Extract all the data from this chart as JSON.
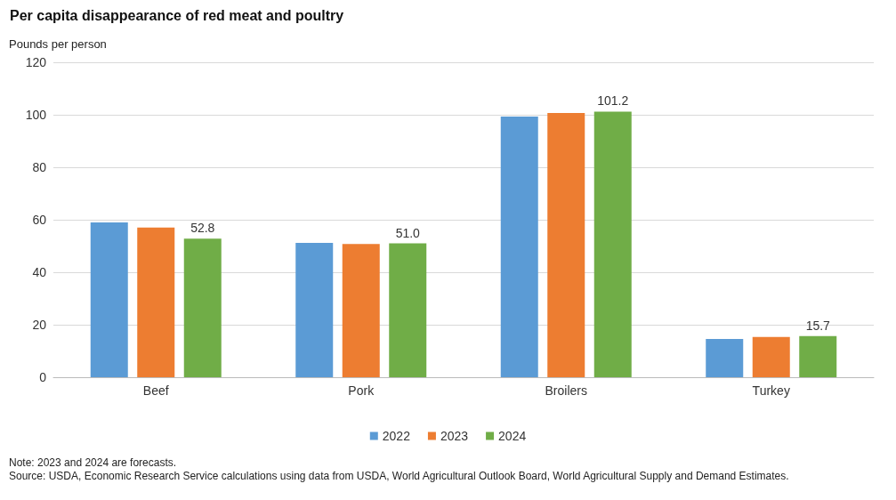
{
  "chart_data": {
    "type": "bar",
    "title": "Per capita disappearance of red meat and poultry",
    "ylabel": "Pounds per person",
    "categories": [
      "Beef",
      "Pork",
      "Broilers",
      "Turkey"
    ],
    "series": [
      {
        "name": "2022",
        "color": "#5b9bd5",
        "values": [
          59.0,
          51.2,
          99.3,
          14.6
        ]
      },
      {
        "name": "2023",
        "color": "#ed7d31",
        "values": [
          57.0,
          50.8,
          100.7,
          15.3
        ]
      },
      {
        "name": "2024",
        "color": "#70ad47",
        "values": [
          52.8,
          51.0,
          101.2,
          15.7
        ],
        "value_labels": [
          "52.8",
          "51.0",
          "101.2",
          "15.7"
        ]
      }
    ],
    "ylim": [
      0,
      120
    ],
    "yticks": [
      0,
      20,
      40,
      60,
      80,
      100,
      120
    ],
    "grid": "y",
    "legend": "bottom",
    "annotations": [
      "Note: 2023 and 2024 are forecasts.",
      "Source: USDA, Economic Research Service calculations using data from USDA, World Agricultural Outlook Board, World Agricultural Supply and Demand Estimates."
    ]
  }
}
